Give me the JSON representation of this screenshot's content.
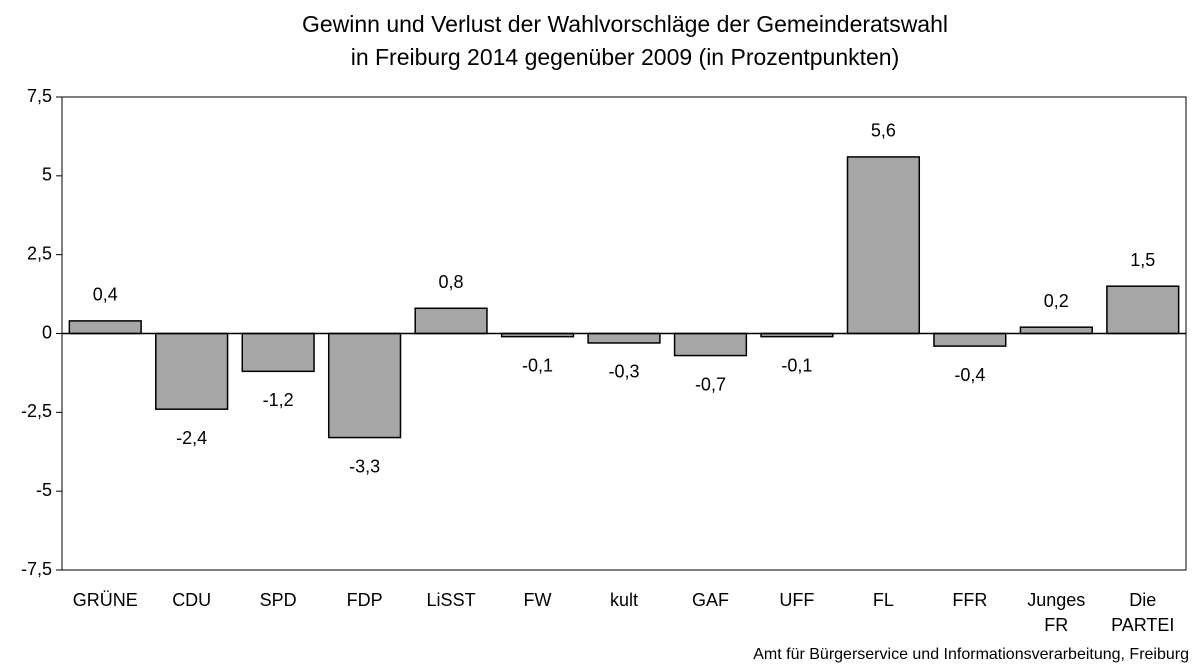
{
  "chart_data": {
    "type": "bar",
    "title": "Gewinn und Verlust der Wahlvorschläge der Gemeinderatswahl\nin Freiburg 2014 gegenüber 2009 (in Prozentpunkten)",
    "categories": [
      "GRÜNE",
      "CDU",
      "SPD",
      "FDP",
      "LiSST",
      "FW",
      "kult",
      "GAF",
      "UFF",
      "FL",
      "FFR",
      "Junges\nFR",
      "Die\nPARTEI"
    ],
    "values": [
      0.4,
      -2.4,
      -1.2,
      -3.3,
      0.8,
      -0.1,
      -0.3,
      -0.7,
      -0.1,
      5.6,
      -0.4,
      0.2,
      1.5
    ],
    "value_labels": [
      "0,4",
      "-2,4",
      "-1,2",
      "-3,3",
      "0,8",
      "-0,1",
      "-0,3",
      "-0,7",
      "-0,1",
      "5,6",
      "-0,4",
      "0,2",
      "1,5"
    ],
    "color": "#a6a6a6",
    "ylim": [
      -7.5,
      7.5
    ],
    "yticks": [
      {
        "value": -7.5,
        "label": "-7,5"
      },
      -5,
      {
        "value": -2.5,
        "label": "-2,5"
      },
      0,
      {
        "value": 2.5,
        "label": "2,5"
      },
      5,
      {
        "value": 7.5,
        "label": "7,5"
      }
    ],
    "grid": false,
    "source": "Amt für Bürgerservice und Informationsverarbeitung, Freiburg"
  }
}
